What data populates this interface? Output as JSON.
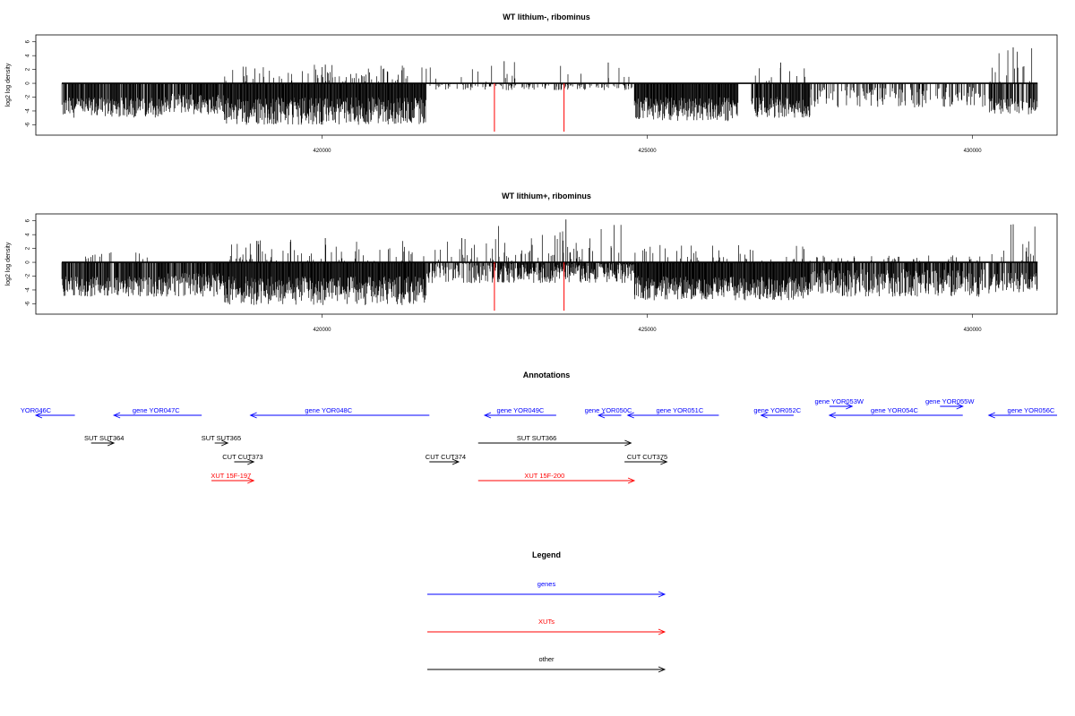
{
  "colors": {
    "gene": "#0000ff",
    "xut": "#ff0000",
    "other": "#000000",
    "red_marker": "#ff0000",
    "bar": "#000000"
  },
  "chart_data": [
    {
      "type": "bar",
      "title": "WT lithium-, ribominus",
      "ylabel": "log2 log density",
      "xlim": [
        415600,
        431300
      ],
      "ylim": [
        -7.5,
        7
      ],
      "xticks": [
        "420000",
        "425000",
        "430000"
      ],
      "xtick_values": [
        420000,
        425000,
        430000
      ],
      "yticks": [
        "-6",
        "-4",
        "-2",
        "0",
        "2",
        "4",
        "6"
      ],
      "ytick_values": [
        -6,
        -4,
        -2,
        0,
        2,
        4,
        6
      ],
      "baseline_range": [
        416000,
        431000
      ],
      "red_markers": [
        {
          "x": 422650,
          "y": -7
        },
        {
          "x": 423720,
          "y": -7
        }
      ],
      "regions": [
        {
          "from": 416000,
          "to": 417600,
          "lo": -5,
          "hi": -2,
          "upmax": 0,
          "density": 0.85
        },
        {
          "from": 417600,
          "to": 418500,
          "lo": -4.5,
          "hi": -1.5,
          "upmax": 0,
          "density": 0.9
        },
        {
          "from": 418500,
          "to": 421600,
          "lo": -6,
          "hi": -2,
          "upmax": 2.7,
          "density": 1.0
        },
        {
          "from": 421600,
          "to": 424000,
          "lo": -1,
          "hi": 0,
          "upmax": 3.2,
          "density": 0.35
        },
        {
          "from": 424000,
          "to": 424800,
          "lo": -1,
          "hi": 0,
          "upmax": 3.0,
          "density": 0.3
        },
        {
          "from": 424800,
          "to": 426400,
          "lo": -5.5,
          "hi": -2,
          "upmax": 0,
          "density": 1.0
        },
        {
          "from": 426600,
          "to": 427500,
          "lo": -5,
          "hi": -2,
          "upmax": 3,
          "density": 0.9
        },
        {
          "from": 427500,
          "to": 430200,
          "lo": -3.5,
          "hi": -0.5,
          "upmax": 0,
          "density": 0.4
        },
        {
          "from": 430250,
          "to": 431000,
          "lo": -4.5,
          "hi": -2,
          "upmax": 5.2,
          "density": 0.8
        }
      ]
    },
    {
      "type": "bar",
      "title": "WT lithium+, ribominus",
      "ylabel": "log2 log density",
      "xlim": [
        415600,
        431300
      ],
      "ylim": [
        -7.5,
        7
      ],
      "xticks": [
        "420000",
        "425000",
        "430000"
      ],
      "xtick_values": [
        420000,
        425000,
        430000
      ],
      "yticks": [
        "-6",
        "-4",
        "-2",
        "0",
        "2",
        "4",
        "6"
      ],
      "ytick_values": [
        -6,
        -4,
        -2,
        0,
        2,
        4,
        6
      ],
      "baseline_range": [
        416000,
        431000
      ],
      "red_markers": [
        {
          "x": 422650,
          "y": -7
        },
        {
          "x": 423720,
          "y": -7
        }
      ],
      "regions": [
        {
          "from": 416000,
          "to": 417600,
          "lo": -5,
          "hi": -2,
          "upmax": 1.5,
          "density": 0.85
        },
        {
          "from": 417600,
          "to": 418500,
          "lo": -5,
          "hi": -1.5,
          "upmax": 0,
          "density": 0.9
        },
        {
          "from": 418500,
          "to": 421600,
          "lo": -6.2,
          "hi": -2,
          "upmax": 3.5,
          "density": 1.0
        },
        {
          "from": 421600,
          "to": 422700,
          "lo": -3,
          "hi": 0,
          "upmax": 3.5,
          "density": 0.6
        },
        {
          "from": 422700,
          "to": 424800,
          "lo": -3,
          "hi": 0,
          "upmax": 6.2,
          "density": 0.95
        },
        {
          "from": 424800,
          "to": 427500,
          "lo": -5.5,
          "hi": -2,
          "upmax": 2.5,
          "density": 1.0
        },
        {
          "from": 427500,
          "to": 430200,
          "lo": -5,
          "hi": -1,
          "upmax": 1,
          "density": 0.85
        },
        {
          "from": 430250,
          "to": 431000,
          "lo": -4.5,
          "hi": -1.5,
          "upmax": 5.5,
          "density": 0.8
        }
      ]
    }
  ],
  "annotations": {
    "title": "Annotations",
    "features": [
      {
        "label": "gene YOR046C",
        "shown": "YOR046C",
        "type": "gene",
        "dir": "left",
        "from": 415600,
        "to": 416200,
        "row": 0,
        "label_x": 415600
      },
      {
        "label": "gene YOR047C",
        "type": "gene",
        "dir": "left",
        "from": 416800,
        "to": 418150,
        "row": 0,
        "label_x": 417450
      },
      {
        "label": "gene YOR048C",
        "type": "gene",
        "dir": "left",
        "from": 418900,
        "to": 421650,
        "row": 0,
        "label_x": 420100
      },
      {
        "label": "gene YOR049C",
        "type": "gene",
        "dir": "left",
        "from": 422500,
        "to": 423600,
        "row": 0,
        "label_x": 423050
      },
      {
        "label": "gene YOR050C",
        "type": "gene",
        "dir": "left",
        "from": 424250,
        "to": 424600,
        "row": 0,
        "label_x": 424400
      },
      {
        "label": "gene YOR051C",
        "type": "gene",
        "dir": "left",
        "from": 424700,
        "to": 426100,
        "row": 0,
        "label_x": 425500
      },
      {
        "label": "gene YOR052C",
        "type": "gene",
        "dir": "left",
        "from": 426750,
        "to": 427250,
        "row": 0,
        "label_x": 427000
      },
      {
        "label": "gene YOR053W",
        "type": "gene",
        "dir": "right",
        "from": 427800,
        "to": 428150,
        "row": -1,
        "label_x": 427950
      },
      {
        "label": "gene YOR054C",
        "type": "gene",
        "dir": "left",
        "from": 427800,
        "to": 429850,
        "row": 0,
        "label_x": 428800
      },
      {
        "label": "gene YOR055W",
        "type": "gene",
        "dir": "right",
        "from": 429500,
        "to": 429850,
        "row": -1,
        "label_x": 429650
      },
      {
        "label": "gene YOR056C",
        "type": "gene",
        "dir": "left",
        "from": 430250,
        "to": 431300,
        "row": 0,
        "label_x": 430900
      },
      {
        "label": "SUT SUT364",
        "type": "other",
        "dir": "right",
        "from": 416450,
        "to": 416800,
        "row": 1,
        "label_x": 416650
      },
      {
        "label": "SUT SUT365",
        "type": "other",
        "dir": "right",
        "from": 418350,
        "to": 418550,
        "row": 1,
        "label_x": 418450
      },
      {
        "label": "SUT SUT366",
        "type": "other",
        "dir": "right",
        "from": 422400,
        "to": 424750,
        "row": 1,
        "label_x": 423300
      },
      {
        "label": "CUT CUT373",
        "type": "other",
        "dir": "right",
        "from": 418650,
        "to": 418950,
        "row": 2,
        "label_x": 418780
      },
      {
        "label": "CUT CUT374",
        "type": "other",
        "dir": "right",
        "from": 421650,
        "to": 422100,
        "row": 2,
        "label_x": 421900
      },
      {
        "label": "CUT CUT375",
        "type": "other",
        "dir": "right",
        "from": 424650,
        "to": 425300,
        "row": 2,
        "label_x": 425000
      },
      {
        "label": "XUT 15F-197",
        "type": "xut",
        "dir": "right",
        "from": 418300,
        "to": 418950,
        "row": 3,
        "label_x": 418600
      },
      {
        "label": "XUT 15F-200",
        "type": "xut",
        "dir": "right",
        "from": 422400,
        "to": 424800,
        "row": 3,
        "label_x": 423420
      }
    ]
  },
  "legend": {
    "title": "Legend",
    "items": [
      {
        "label": "genes",
        "type": "gene"
      },
      {
        "label": "XUTs",
        "type": "xut"
      },
      {
        "label": "other",
        "type": "other"
      }
    ]
  }
}
